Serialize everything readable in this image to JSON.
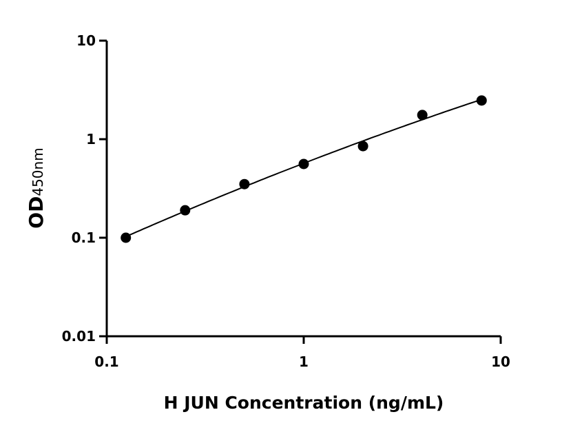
{
  "chart_data": {
    "type": "scatter",
    "title": "",
    "xlabel": "H JUN Concentration (ng/mL)",
    "ylabel_main": "OD",
    "ylabel_sub": "450nm",
    "xscale": "log",
    "yscale": "log",
    "xlim": [
      0.1,
      10
    ],
    "ylim": [
      0.01,
      10
    ],
    "xticks": [
      "0.1",
      "1",
      "10"
    ],
    "yticks": [
      "0.01",
      "0.1",
      "1",
      "10"
    ],
    "grid": false,
    "marker_color": "#000000",
    "fit_curve": true,
    "x": [
      0.125,
      0.25,
      0.5,
      1,
      2,
      4,
      8
    ],
    "y": [
      0.1,
      0.19,
      0.35,
      0.56,
      0.85,
      1.76,
      2.47
    ]
  }
}
